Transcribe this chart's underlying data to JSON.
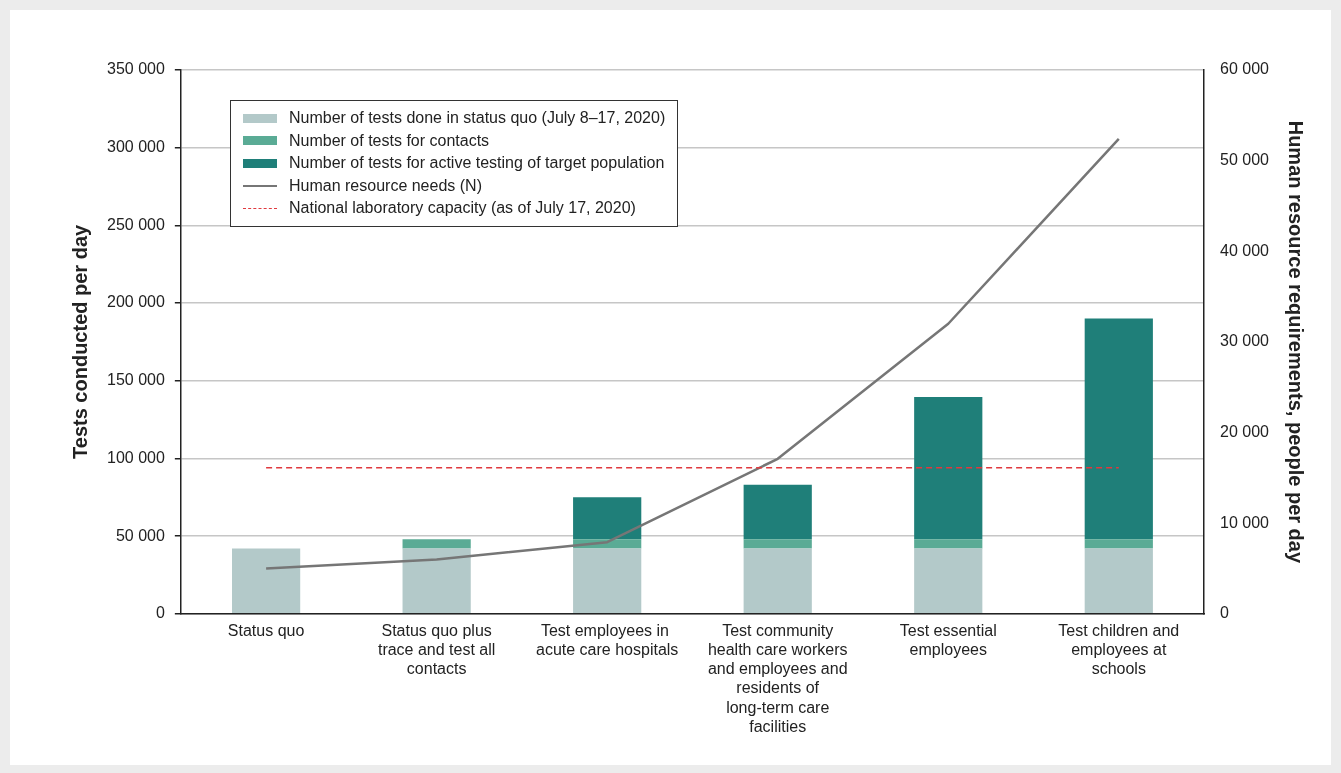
{
  "chart_data": {
    "type": "bar",
    "stacked": true,
    "xlabel": null,
    "ylabel": "Tests conducted per day",
    "y2label": "Human resource requirements, people per day",
    "categories": [
      "Status quo",
      "Status quo plus trace and test all contacts",
      "Test employees in  acute care hospitals",
      "Test community health care workers and employees and residents of long-term care facilities",
      "Test essential employees",
      "Test children and employees at schools"
    ],
    "series": [
      {
        "name": "Number of tests done in status quo (July 8–17, 2020)",
        "color": "#b3c9c9",
        "values": [
          42000,
          42000,
          42000,
          42000,
          42000,
          42000
        ]
      },
      {
        "name": "Number of tests for contacts",
        "color": "#5aab95",
        "values": [
          null,
          6000,
          6000,
          6000,
          6000,
          6000
        ]
      },
      {
        "name": "Number of tests for active testing of target population",
        "color": "#1f7f79",
        "values": [
          null,
          null,
          27000,
          35000,
          91500,
          142000
        ]
      },
      {
        "name": "Human resource needs (N)",
        "type": "line",
        "axis": "y2",
        "color": "#767676",
        "marker": "none",
        "values": [
          5000,
          6000,
          7900,
          17100,
          32000,
          52400
        ]
      }
    ],
    "ref_lines": [
      {
        "axis": "y",
        "value": 94000,
        "label": "National laboratory capacity (as of July 17, 2020)",
        "color": "#e0393e",
        "line_style": "dashed"
      }
    ],
    "ylim": [
      0,
      350000
    ],
    "yticks": [
      {
        "value": 0,
        "label": "0"
      },
      {
        "value": 50000,
        "label": "50 000"
      },
      {
        "value": 100000,
        "label": "100 000"
      },
      {
        "value": 150000,
        "label": "150 000"
      },
      {
        "value": 200000,
        "label": "200 000"
      },
      {
        "value": 250000,
        "label": "250 000"
      },
      {
        "value": 300000,
        "label": "300 000"
      },
      {
        "value": 350000,
        "label": "350 000"
      }
    ],
    "y2lim": [
      0,
      60000
    ],
    "y2ticks": [
      {
        "value": 0,
        "label": "0"
      },
      {
        "value": 10000,
        "label": "10 000"
      },
      {
        "value": 20000,
        "label": "20 000"
      },
      {
        "value": 30000,
        "label": "30 000"
      },
      {
        "value": 40000,
        "label": "40 000"
      },
      {
        "value": 50000,
        "label": "50 000"
      },
      {
        "value": 60000,
        "label": "60 000"
      }
    ],
    "grid": "y",
    "legend": "top left"
  }
}
